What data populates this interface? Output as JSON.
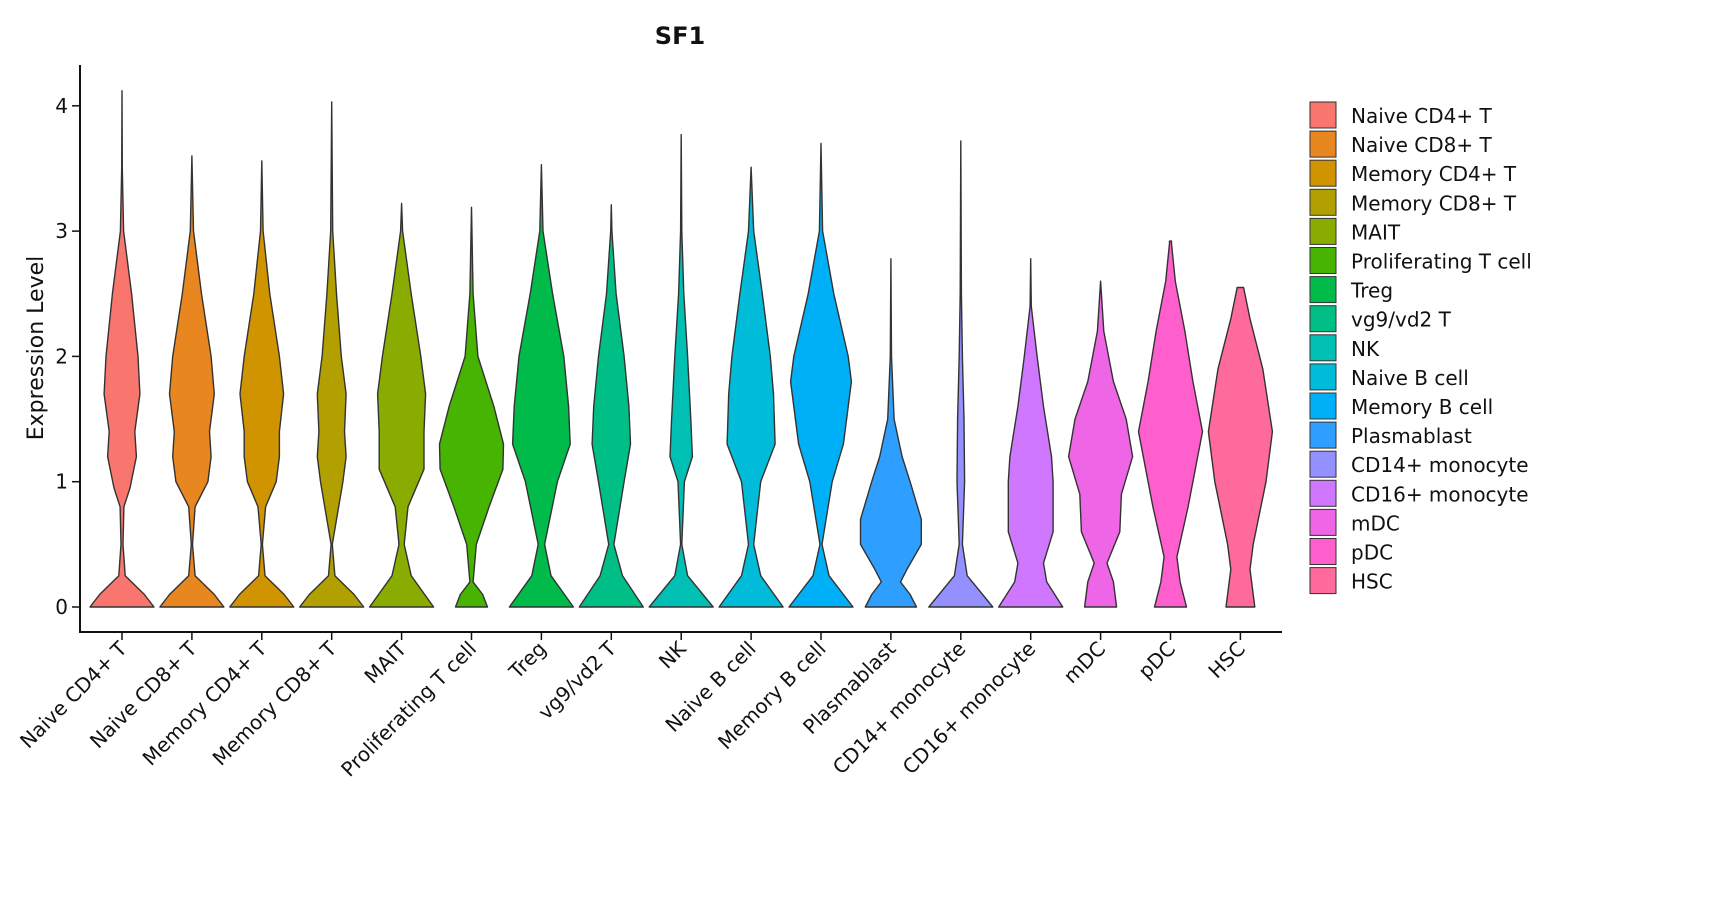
{
  "chart_data": {
    "type": "violin",
    "title": "SF1",
    "xlabel": "",
    "ylabel": "Expression Level",
    "ylim": [
      -0.2,
      4.35
    ],
    "yticks": [
      0,
      1,
      2,
      3,
      4
    ],
    "grid": false,
    "legend_position": "right",
    "categories": [
      "Naive CD4+ T",
      "Naive CD8+ T",
      "Memory CD4+ T",
      "Memory CD8+ T",
      "MAIT",
      "Proliferating T cell",
      "Treg",
      "vg9/vd2 T",
      "NK",
      "Naive B cell",
      "Memory B cell",
      "Plasmablast",
      "CD14+ monocyte",
      "CD16+ monocyte",
      "mDC",
      "pDC",
      "HSC"
    ],
    "colors": [
      "#F8766D",
      "#E8861F",
      "#D09400",
      "#B1A000",
      "#8AAC00",
      "#46B400",
      "#00BA4A",
      "#00BF86",
      "#00C0B4",
      "#00BCD8",
      "#00B0F6",
      "#2E9FFF",
      "#9590FF",
      "#CF78FF",
      "#EE66E6",
      "#FF5FCC",
      "#FF6A9C"
    ],
    "series": [
      {
        "name": "Naive CD4+ T",
        "max": 4.12,
        "profile": [
          [
            0,
            1
          ],
          [
            0.1,
            0.7
          ],
          [
            0.25,
            0.1
          ],
          [
            0.5,
            0.03
          ],
          [
            0.8,
            0.06
          ],
          [
            0.95,
            0.25
          ],
          [
            1.2,
            0.45
          ],
          [
            1.4,
            0.4
          ],
          [
            1.7,
            0.56
          ],
          [
            2.0,
            0.5
          ],
          [
            2.5,
            0.3
          ],
          [
            3.0,
            0.05
          ],
          [
            3.5,
            0.01
          ],
          [
            4.12,
            0
          ]
        ]
      },
      {
        "name": "Naive CD8+ T",
        "max": 3.6,
        "profile": [
          [
            0,
            1
          ],
          [
            0.1,
            0.7
          ],
          [
            0.25,
            0.1
          ],
          [
            0.5,
            0.02
          ],
          [
            0.8,
            0.1
          ],
          [
            1.0,
            0.5
          ],
          [
            1.2,
            0.6
          ],
          [
            1.4,
            0.55
          ],
          [
            1.7,
            0.7
          ],
          [
            2.0,
            0.6
          ],
          [
            2.5,
            0.3
          ],
          [
            3.0,
            0.05
          ],
          [
            3.6,
            0
          ]
        ]
      },
      {
        "name": "Memory CD4+ T",
        "max": 3.56,
        "profile": [
          [
            0,
            1
          ],
          [
            0.1,
            0.7
          ],
          [
            0.25,
            0.1
          ],
          [
            0.5,
            0.02
          ],
          [
            0.8,
            0.12
          ],
          [
            1.0,
            0.45
          ],
          [
            1.2,
            0.55
          ],
          [
            1.4,
            0.55
          ],
          [
            1.7,
            0.68
          ],
          [
            2.0,
            0.55
          ],
          [
            2.5,
            0.25
          ],
          [
            3.0,
            0.04
          ],
          [
            3.56,
            0
          ]
        ]
      },
      {
        "name": "Memory CD8+ T",
        "max": 4.03,
        "profile": [
          [
            0,
            1
          ],
          [
            0.1,
            0.7
          ],
          [
            0.25,
            0.1
          ],
          [
            0.5,
            0.02
          ],
          [
            1.0,
            0.35
          ],
          [
            1.2,
            0.45
          ],
          [
            1.4,
            0.4
          ],
          [
            1.7,
            0.45
          ],
          [
            2.0,
            0.3
          ],
          [
            2.5,
            0.15
          ],
          [
            3.0,
            0.03
          ],
          [
            4.03,
            0
          ]
        ]
      },
      {
        "name": "MAIT",
        "max": 3.22,
        "profile": [
          [
            0,
            1
          ],
          [
            0.25,
            0.3
          ],
          [
            0.5,
            0.08
          ],
          [
            0.8,
            0.2
          ],
          [
            1.1,
            0.7
          ],
          [
            1.4,
            0.7
          ],
          [
            1.7,
            0.75
          ],
          [
            2.0,
            0.6
          ],
          [
            2.5,
            0.3
          ],
          [
            3.0,
            0.03
          ],
          [
            3.22,
            0
          ]
        ]
      },
      {
        "name": "Proliferating T cell",
        "max": 3.19,
        "profile": [
          [
            0,
            0.5
          ],
          [
            0.1,
            0.35
          ],
          [
            0.2,
            0.05
          ],
          [
            0.5,
            0.15
          ],
          [
            0.8,
            0.55
          ],
          [
            1.1,
            0.98
          ],
          [
            1.3,
            1.0
          ],
          [
            1.6,
            0.7
          ],
          [
            2.0,
            0.2
          ],
          [
            2.5,
            0.05
          ],
          [
            3.19,
            0
          ]
        ]
      },
      {
        "name": "Treg",
        "max": 3.53,
        "profile": [
          [
            0,
            1
          ],
          [
            0.25,
            0.3
          ],
          [
            0.5,
            0.1
          ],
          [
            1.0,
            0.5
          ],
          [
            1.3,
            0.9
          ],
          [
            1.6,
            0.85
          ],
          [
            2.0,
            0.7
          ],
          [
            2.5,
            0.35
          ],
          [
            3.0,
            0.05
          ],
          [
            3.53,
            0
          ]
        ]
      },
      {
        "name": "vg9/vd2 T",
        "max": 3.21,
        "profile": [
          [
            0,
            1
          ],
          [
            0.25,
            0.35
          ],
          [
            0.5,
            0.08
          ],
          [
            1.0,
            0.4
          ],
          [
            1.3,
            0.6
          ],
          [
            1.6,
            0.55
          ],
          [
            2.0,
            0.4
          ],
          [
            2.5,
            0.15
          ],
          [
            3.0,
            0.02
          ],
          [
            3.21,
            0
          ]
        ]
      },
      {
        "name": "NK",
        "max": 3.77,
        "profile": [
          [
            0,
            1
          ],
          [
            0.25,
            0.2
          ],
          [
            0.5,
            0.02
          ],
          [
            1.0,
            0.1
          ],
          [
            1.2,
            0.35
          ],
          [
            1.5,
            0.3
          ],
          [
            2.0,
            0.2
          ],
          [
            2.5,
            0.08
          ],
          [
            3.0,
            0.02
          ],
          [
            3.77,
            0
          ]
        ]
      },
      {
        "name": "Naive B cell",
        "max": 3.51,
        "profile": [
          [
            0,
            1
          ],
          [
            0.25,
            0.3
          ],
          [
            0.5,
            0.08
          ],
          [
            1.0,
            0.3
          ],
          [
            1.3,
            0.75
          ],
          [
            1.7,
            0.7
          ],
          [
            2.0,
            0.6
          ],
          [
            2.5,
            0.35
          ],
          [
            3.0,
            0.08
          ],
          [
            3.51,
            0
          ]
        ]
      },
      {
        "name": "Memory B cell",
        "max": 3.7,
        "profile": [
          [
            0,
            1
          ],
          [
            0.25,
            0.25
          ],
          [
            0.5,
            0.03
          ],
          [
            1.0,
            0.35
          ],
          [
            1.3,
            0.7
          ],
          [
            1.8,
            0.95
          ],
          [
            2.0,
            0.85
          ],
          [
            2.5,
            0.4
          ],
          [
            3.0,
            0.05
          ],
          [
            3.7,
            0
          ]
        ]
      },
      {
        "name": "Plasmablast",
        "max": 2.78,
        "profile": [
          [
            0,
            0.8
          ],
          [
            0.1,
            0.6
          ],
          [
            0.2,
            0.3
          ],
          [
            0.3,
            0.5
          ],
          [
            0.5,
            0.95
          ],
          [
            0.7,
            0.95
          ],
          [
            1.0,
            0.6
          ],
          [
            1.2,
            0.35
          ],
          [
            1.5,
            0.1
          ],
          [
            2.0,
            0.02
          ],
          [
            2.78,
            0
          ]
        ]
      },
      {
        "name": "CD14+ monocyte",
        "max": 3.72,
        "profile": [
          [
            0,
            1
          ],
          [
            0.25,
            0.2
          ],
          [
            0.5,
            0.05
          ],
          [
            1.0,
            0.12
          ],
          [
            1.5,
            0.1
          ],
          [
            2.0,
            0.05
          ],
          [
            2.5,
            0.02
          ],
          [
            3.72,
            0
          ]
        ]
      },
      {
        "name": "CD16+ monocyte",
        "max": 2.78,
        "profile": [
          [
            0,
            1
          ],
          [
            0.2,
            0.5
          ],
          [
            0.35,
            0.4
          ],
          [
            0.6,
            0.7
          ],
          [
            1.0,
            0.7
          ],
          [
            1.2,
            0.65
          ],
          [
            1.6,
            0.4
          ],
          [
            2.0,
            0.2
          ],
          [
            2.4,
            0.02
          ],
          [
            2.78,
            0
          ]
        ]
      },
      {
        "name": "mDC",
        "max": 2.6,
        "profile": [
          [
            0,
            0.5
          ],
          [
            0.2,
            0.4
          ],
          [
            0.35,
            0.2
          ],
          [
            0.6,
            0.6
          ],
          [
            0.9,
            0.65
          ],
          [
            1.2,
            1.0
          ],
          [
            1.5,
            0.8
          ],
          [
            1.8,
            0.4
          ],
          [
            2.2,
            0.1
          ],
          [
            2.6,
            0
          ]
        ]
      },
      {
        "name": "pDC",
        "max": 2.92,
        "profile": [
          [
            0,
            0.5
          ],
          [
            0.2,
            0.3
          ],
          [
            0.4,
            0.2
          ],
          [
            0.8,
            0.55
          ],
          [
            1.4,
            1.0
          ],
          [
            1.8,
            0.7
          ],
          [
            2.2,
            0.45
          ],
          [
            2.6,
            0.15
          ],
          [
            2.9,
            0.03
          ],
          [
            2.92,
            0.03
          ]
        ]
      },
      {
        "name": "HSC",
        "max": 2.55,
        "profile": [
          [
            0,
            0.45
          ],
          [
            0.3,
            0.3
          ],
          [
            0.5,
            0.4
          ],
          [
            1.0,
            0.8
          ],
          [
            1.4,
            1.0
          ],
          [
            1.9,
            0.7
          ],
          [
            2.3,
            0.3
          ],
          [
            2.55,
            0.1
          ]
        ]
      }
    ]
  }
}
